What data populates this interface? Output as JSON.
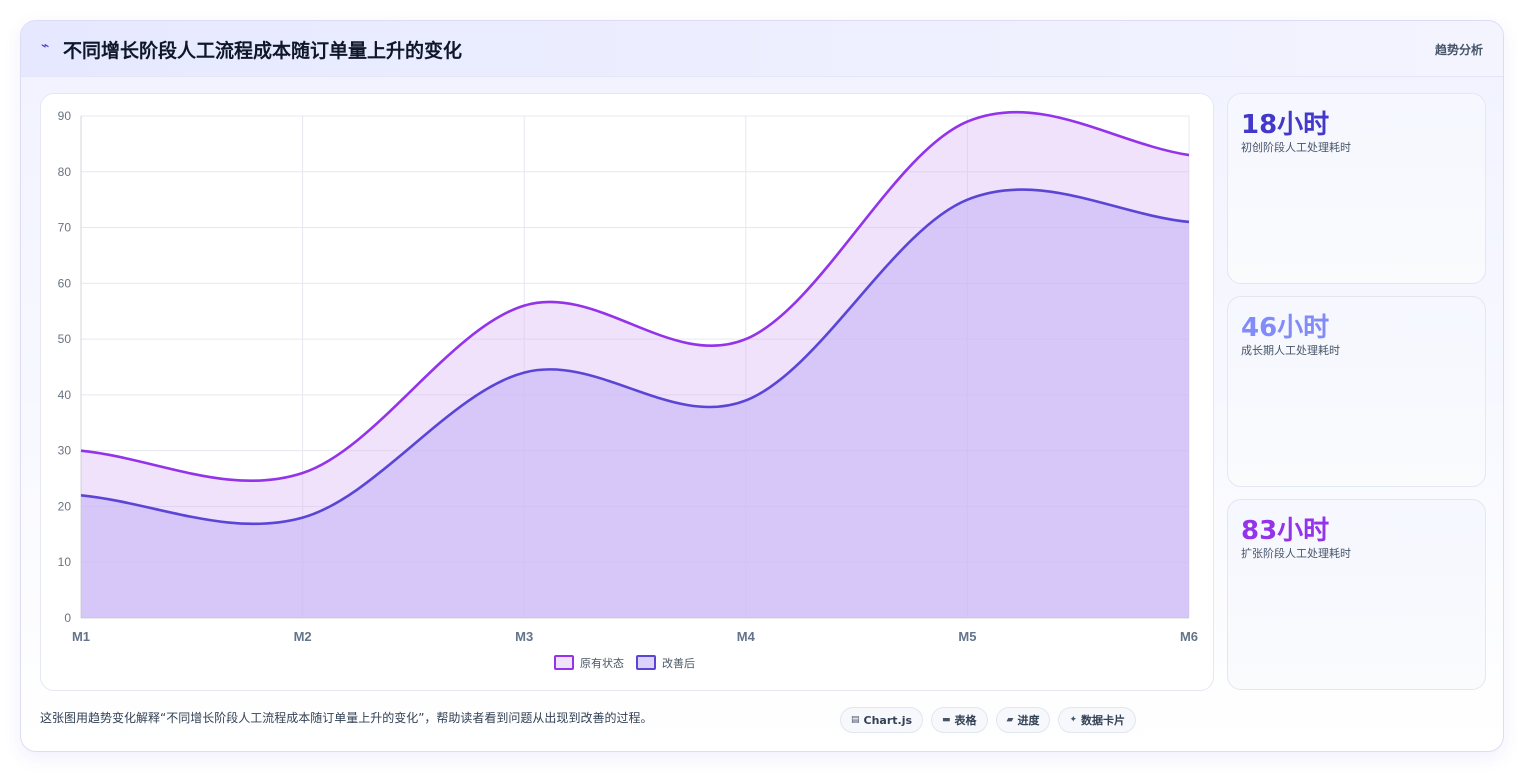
{
  "header": {
    "title": "不同增长阶段人工流程成本随订单量上升的变化",
    "logo_icon": "trend-icon",
    "logo_glyph": "⌁",
    "tag": "趋势分析"
  },
  "chart_data": {
    "type": "area",
    "categories": [
      "M1",
      "M2",
      "M3",
      "M4",
      "M5",
      "M6"
    ],
    "series": [
      {
        "name": "原有状态",
        "values": [
          30,
          26,
          56,
          50,
          89,
          83
        ],
        "color": "#9333ea",
        "fill": "rgba(215,180,245,0.38)"
      },
      {
        "name": "改善后",
        "values": [
          22,
          18,
          44,
          39,
          75,
          71
        ],
        "color": "#5b45d6",
        "fill": "rgba(200,182,245,0.62)"
      }
    ],
    "title": "",
    "xlabel": "",
    "ylabel": "",
    "ylim": [
      0,
      90
    ],
    "yticks": [
      0,
      10,
      20,
      30,
      40,
      50,
      60,
      70,
      80,
      90
    ],
    "grid": true,
    "legend_position": "bottom-center",
    "smooth": true
  },
  "stats": [
    {
      "value": "18小时",
      "label": "初创阶段人工处理耗时",
      "color": "#4338ca"
    },
    {
      "value": "46小时",
      "label": "成长期人工处理耗时",
      "color": "#818cf8"
    },
    {
      "value": "83小时",
      "label": "扩张阶段人工处理耗时",
      "color": "#9333ea"
    }
  ],
  "footer": {
    "description": "这张图用趋势变化解释“不同增长阶段人工流程成本随订单量上升的变化”，帮助读者看到问题从出现到改善的过程。",
    "chips": [
      {
        "icon": "chart-icon",
        "glyph": "▤",
        "label": "Chart.js"
      },
      {
        "icon": "table-icon",
        "glyph": "▬",
        "label": "表格"
      },
      {
        "icon": "progress-icon",
        "glyph": "▰",
        "label": "进度"
      },
      {
        "icon": "data-card-icon",
        "glyph": "✦",
        "label": "数据卡片"
      }
    ]
  }
}
